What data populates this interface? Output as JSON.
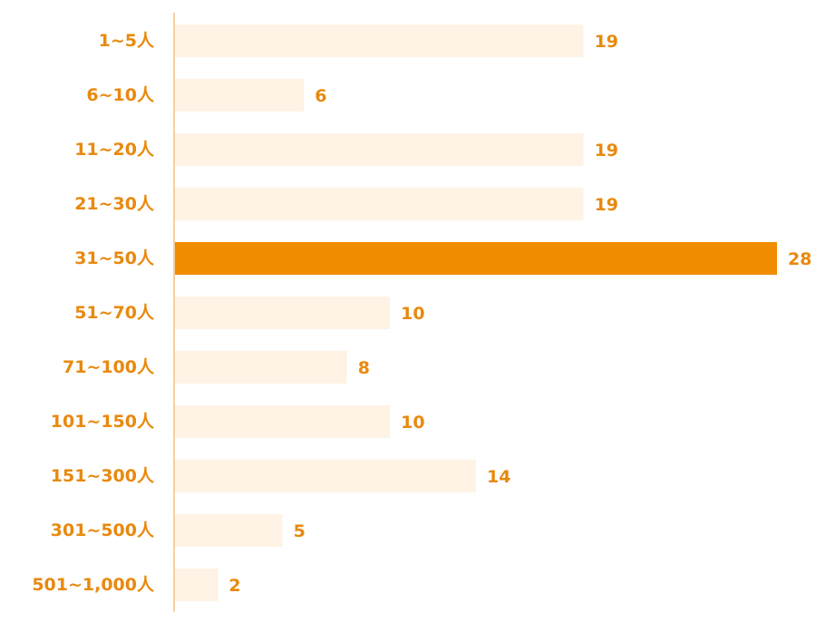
{
  "chart_data": {
    "type": "bar",
    "orientation": "horizontal",
    "categories": [
      "1~5人",
      "6~10人",
      "11~20人",
      "21~30人",
      "31~50人",
      "51~70人",
      "71~100人",
      "101~150人",
      "151~300人",
      "301~500人",
      "501~1,000人"
    ],
    "values": [
      19,
      6,
      19,
      19,
      28,
      10,
      8,
      10,
      14,
      5,
      2
    ],
    "value_labels": [
      "19",
      "6",
      "19",
      "19",
      "28",
      "10",
      "8",
      "10",
      "14",
      "5",
      "2"
    ],
    "highlight_index": 4,
    "title": "",
    "xlabel": "",
    "ylabel": "",
    "xlim": [
      0,
      28
    ],
    "grid": false,
    "legend": "none",
    "colors": {
      "bar": "#FEF3E4",
      "highlight": "#F08C00",
      "text": "#E8890E",
      "axis": "#F0A040"
    }
  }
}
